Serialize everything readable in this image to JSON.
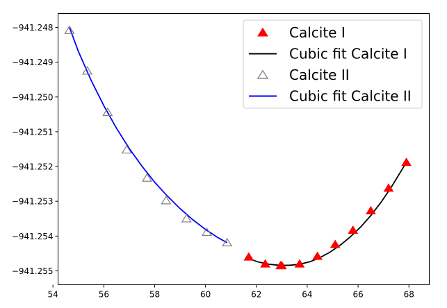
{
  "chart_data": {
    "type": "scatter",
    "title": "",
    "xlabel": "",
    "ylabel": "",
    "xlim": [
      54.2,
      68.8
    ],
    "ylim": [
      -941.2554,
      -941.2476
    ],
    "xticks": [
      54,
      56,
      58,
      60,
      62,
      64,
      66,
      68
    ],
    "yticks": [
      -941.248,
      -941.249,
      -941.25,
      -941.251,
      -941.252,
      -941.253,
      -941.254,
      -941.255
    ],
    "xtick_labels": [
      "54",
      "56",
      "58",
      "60",
      "62",
      "64",
      "66",
      "68"
    ],
    "ytick_labels": [
      "−941.248",
      "−941.249",
      "−941.250",
      "−941.251",
      "−941.252",
      "−941.253",
      "−941.254",
      "−941.255"
    ],
    "grid": false,
    "legend_position": "top-right",
    "series": [
      {
        "name": "Calcite I",
        "kind": "points",
        "marker": "filled-triangle",
        "color": "#ff0000",
        "x": [
          61.7,
          62.35,
          62.95,
          63.0,
          63.7,
          64.4,
          65.1,
          65.8,
          66.5,
          67.2,
          67.9
        ],
        "y": [
          -941.2546,
          -941.2548,
          -941.25485,
          -941.25485,
          -941.2548,
          -941.25458,
          -941.25424,
          -941.25383,
          -941.25327,
          -941.25262,
          -941.25188
        ]
      },
      {
        "name": "Cubic fit Calcite I",
        "kind": "line",
        "color": "#000000",
        "x": [
          61.7,
          62.1,
          62.5,
          62.9,
          63.3,
          63.7,
          64.1,
          64.5,
          64.9,
          65.3,
          65.7,
          66.1,
          66.5,
          66.9,
          67.3,
          67.7,
          67.9
        ],
        "y": [
          -941.25465,
          -941.25475,
          -941.25481,
          -941.25484,
          -941.25484,
          -941.25481,
          -941.25474,
          -941.25462,
          -941.25446,
          -941.25426,
          -941.25402,
          -941.25374,
          -941.25341,
          -941.25303,
          -941.2526,
          -941.25212,
          -941.25188
        ]
      },
      {
        "name": "Calcite II",
        "kind": "points",
        "marker": "open-triangle",
        "color": "#808080",
        "x": [
          54.65,
          55.35,
          56.15,
          56.9,
          57.7,
          58.45,
          59.25,
          60.05,
          60.85
        ],
        "y": [
          -941.24808,
          -941.24925,
          -941.25044,
          -941.25152,
          -941.25233,
          -941.25298,
          -941.2535,
          -941.25389,
          -941.25419
        ]
      },
      {
        "name": "Cubic fit Calcite II",
        "kind": "line",
        "color": "#0000ff",
        "x": [
          54.65,
          55.0,
          55.5,
          56.0,
          56.5,
          57.0,
          57.5,
          58.0,
          58.5,
          59.0,
          59.5,
          60.0,
          60.5,
          60.85
        ],
        "y": [
          -941.248,
          -941.24869,
          -941.24952,
          -941.25025,
          -941.2509,
          -941.25148,
          -941.25199,
          -941.25245,
          -941.25285,
          -941.25321,
          -941.25353,
          -941.25381,
          -941.25405,
          -941.25419
        ]
      }
    ]
  }
}
